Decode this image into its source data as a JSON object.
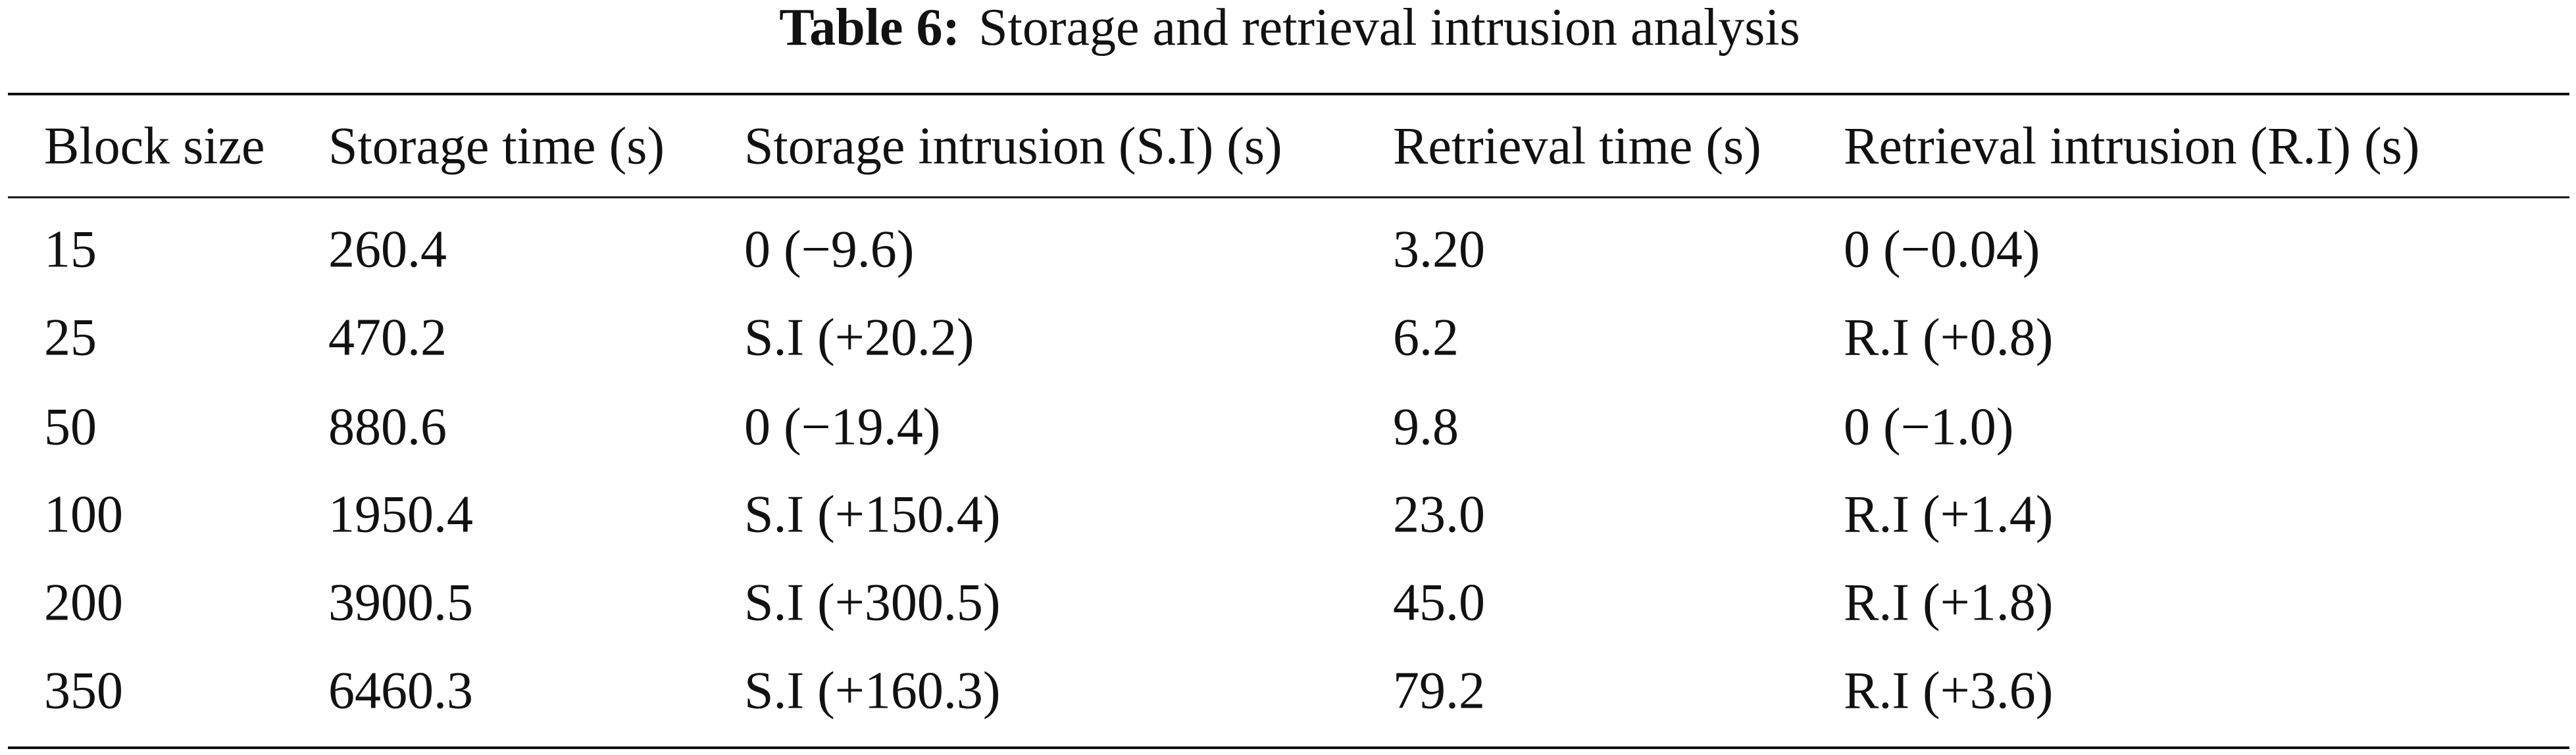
{
  "table": {
    "caption_label": "Table 6:",
    "caption": "Storage and retrieval intrusion analysis",
    "header": [
      "Block size",
      "Storage time (s)",
      "Storage intrusion (S.I) (s)",
      "Retrieval time (s)",
      "Retrieval intrusion (R.I) (s)"
    ],
    "rows": [
      [
        "15",
        "260.4",
        "0 (−9.6)",
        "3.20",
        "0 (−0.04)"
      ],
      [
        "25",
        "470.2",
        "S.I (+20.2)",
        "6.2",
        "R.I (+0.8)"
      ],
      [
        "50",
        "880.6",
        "0 (−19.4)",
        "9.8",
        "0 (−1.0)"
      ],
      [
        "100",
        "1950.4",
        "S.I (+150.4)",
        "23.0",
        "R.I (+1.4)"
      ],
      [
        "200",
        "3900.5",
        "S.I (+300.5)",
        "45.0",
        "R.I (+1.8)"
      ],
      [
        "350",
        "6460.3",
        "S.I (+160.3)",
        "79.2",
        "R.I (+3.6)"
      ]
    ]
  }
}
